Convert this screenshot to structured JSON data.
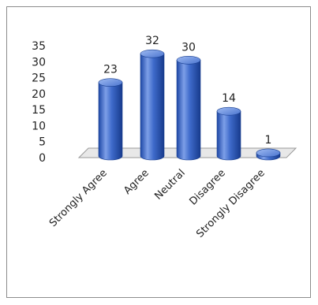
{
  "chart_data": {
    "type": "bar",
    "title": "",
    "xlabel": "",
    "ylabel": "",
    "categories": [
      "Strongly Agree",
      "Agree",
      "Neutral",
      "Disagree",
      "Strongly Disagree"
    ],
    "values": [
      23,
      32,
      30,
      14,
      1
    ],
    "data_labels": [
      "23",
      "32",
      "30",
      "14",
      "1"
    ],
    "ylim": [
      0,
      35
    ],
    "yticks": [
      "0",
      "5",
      "10",
      "15",
      "20",
      "25",
      "30",
      "35"
    ],
    "bar_color": "#3a66c4",
    "bar_highlight": "#8fb0ee",
    "bar_dark": "#173a8c",
    "floor_color": "#e8e8e8",
    "grid": false,
    "legend": "none",
    "style": "3d-cylinder"
  }
}
